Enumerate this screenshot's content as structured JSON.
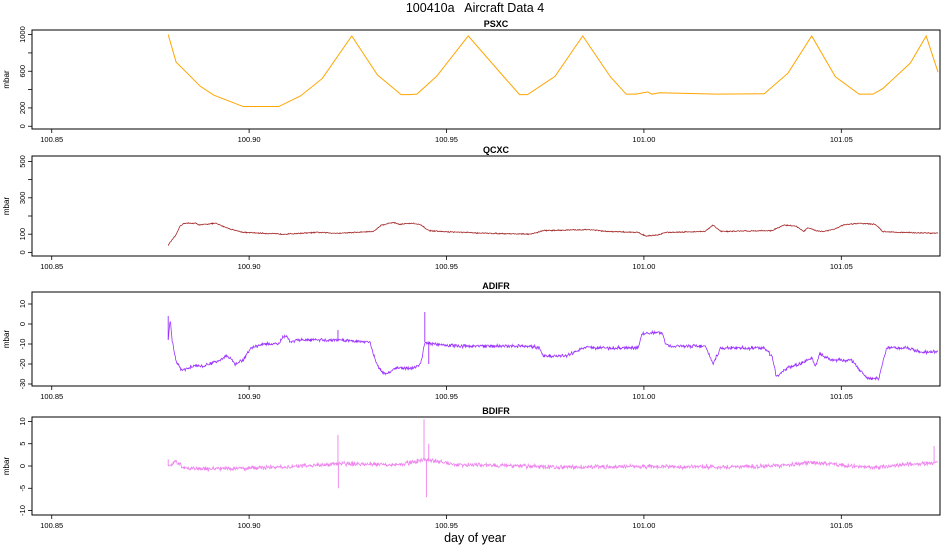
{
  "title": "100410a   Aircraft Data 4",
  "xlabel": "day of year",
  "chart_data": [
    {
      "type": "line",
      "title": "PSXC",
      "ylabel": "mbar",
      "color": "#FFA500",
      "xlim": [
        100.845,
        101.075
      ],
      "ylim": [
        -30,
        1050
      ],
      "xticks": [
        "100.85",
        "100.90",
        "100.95",
        "101.00",
        "101.05"
      ],
      "yticks": [
        "0",
        "200",
        "600",
        "1000"
      ],
      "yticks_minor": [
        400,
        800
      ],
      "noise": 0,
      "series": [
        {
          "x": [
            100.8795,
            100.8815,
            100.885,
            100.8875,
            100.891,
            100.8985,
            100.9075,
            100.913,
            100.9185,
            100.926,
            100.9325,
            100.9385,
            100.9405,
            100.9425,
            100.9475,
            100.9555,
            100.9645,
            100.9685,
            100.9705,
            100.9775,
            100.9845,
            100.9915,
            100.9955,
            100.998,
            101.001,
            101.002,
            101.004,
            101.0185,
            101.0305,
            101.0365,
            101.0425,
            101.0485,
            101.0545,
            101.058,
            101.0605,
            101.0675,
            101.0715,
            101.0745
          ],
          "y": [
            1000,
            700,
            550,
            440,
            340,
            215,
            215,
            330,
            520,
            985,
            560,
            345,
            345,
            350,
            545,
            985,
            540,
            345,
            345,
            545,
            985,
            540,
            350,
            350,
            375,
            350,
            365,
            350,
            355,
            580,
            985,
            540,
            350,
            350,
            410,
            690,
            985,
            590
          ]
        }
      ]
    },
    {
      "type": "line",
      "title": "QCXC",
      "ylabel": "mbar",
      "color": "#A52A2A",
      "xlim": [
        100.845,
        101.075
      ],
      "ylim": [
        -20,
        530
      ],
      "xticks": [
        "100.85",
        "100.90",
        "100.95",
        "101.00",
        "101.05"
      ],
      "yticks": [
        "0",
        "100",
        "300",
        "500"
      ],
      "yticks_minor": [
        200,
        400
      ],
      "noise": 2.5,
      "series": [
        {
          "x": [
            100.8795,
            100.8805,
            100.8815,
            100.8825,
            100.8835,
            100.8865,
            100.8875,
            100.889,
            100.8915,
            100.895,
            100.8985,
            100.9035,
            100.9085,
            100.9175,
            100.9225,
            100.9315,
            100.9335,
            100.9365,
            100.938,
            100.9415,
            100.9435,
            100.9455,
            100.948,
            100.96,
            100.9715,
            100.9745,
            100.9865,
            100.9905,
            100.9985,
            101.0005,
            101.0035,
            101.0055,
            101.0155,
            101.0175,
            101.0195,
            101.0325,
            101.0355,
            101.0385,
            101.0405,
            101.0415,
            101.0435,
            101.0455,
            101.0485,
            101.0505,
            101.0545,
            101.0585,
            101.0605,
            101.065,
            101.0745
          ],
          "y": [
            40,
            70,
            95,
            145,
            160,
            160,
            150,
            155,
            160,
            130,
            110,
            105,
            100,
            110,
            105,
            115,
            150,
            165,
            155,
            160,
            150,
            120,
            115,
            105,
            100,
            120,
            125,
            115,
            110,
            90,
            95,
            110,
            115,
            150,
            115,
            120,
            150,
            145,
            115,
            135,
            120,
            115,
            130,
            150,
            160,
            155,
            115,
            110,
            105
          ]
        }
      ]
    },
    {
      "type": "line",
      "title": "ADIFR",
      "ylabel": "mbar",
      "color": "#9B30FF",
      "xlim": [
        100.845,
        101.075
      ],
      "ylim": [
        -31,
        16
      ],
      "xticks": [
        "100.85",
        "100.90",
        "100.95",
        "101.00",
        "101.05"
      ],
      "yticks": [
        "-30",
        "-20",
        "-10",
        "0",
        "10"
      ],
      "yticks_minor": [],
      "noise": 0.7,
      "spikes": [
        {
          "x": 100.8795,
          "y": 4
        },
        {
          "x": 100.9225,
          "y": -3
        },
        {
          "x": 100.9445,
          "y": 6
        },
        {
          "x": 100.9455,
          "y": -20
        }
      ],
      "series": [
        {
          "x": [
            100.8795,
            100.88,
            100.8805,
            100.8815,
            100.8825,
            100.8835,
            100.8855,
            100.8885,
            100.8915,
            100.8945,
            100.8965,
            100.8985,
            100.9005,
            100.9035,
            100.9075,
            100.9085,
            100.9095,
            100.9105,
            100.9125,
            100.9175,
            100.9225,
            100.9305,
            100.9325,
            100.9345,
            100.9375,
            100.9415,
            100.9435,
            100.9445,
            100.9465,
            100.9525,
            100.9605,
            100.9705,
            100.9735,
            100.9745,
            100.9805,
            100.9845,
            100.9855,
            100.9875,
            100.9985,
            100.9995,
            101.0045,
            101.0055,
            101.0065,
            101.0155,
            101.0175,
            101.0195,
            101.0305,
            101.0325,
            101.0335,
            101.0345,
            101.0365,
            101.0395,
            101.0425,
            101.0435,
            101.0445,
            101.0475,
            101.0525,
            101.0565,
            101.0595,
            101.0615,
            101.0665,
            101.0705,
            101.0745
          ],
          "y": [
            -8,
            2,
            -8,
            -19,
            -22,
            -23,
            -21,
            -21,
            -19,
            -16,
            -20,
            -18,
            -12,
            -10,
            -10,
            -7,
            -6,
            -9,
            -8,
            -8,
            -8,
            -9,
            -21,
            -25,
            -22,
            -22,
            -20,
            -9,
            -10,
            -11,
            -11,
            -11,
            -12,
            -16,
            -16,
            -12,
            -11,
            -12,
            -12,
            -5,
            -4,
            -10,
            -11,
            -11,
            -20,
            -12,
            -12,
            -16,
            -26,
            -25,
            -22,
            -20,
            -17,
            -21,
            -15,
            -18,
            -18,
            -27,
            -27,
            -12,
            -12,
            -14,
            -14
          ]
        }
      ]
    },
    {
      "type": "line",
      "title": "BDIFR",
      "ylabel": "mbar",
      "color": "#EE82EE",
      "xlim": [
        100.845,
        101.075
      ],
      "ylim": [
        -11,
        11
      ],
      "xticks": [
        "100.85",
        "100.90",
        "100.95",
        "101.00",
        "101.05"
      ],
      "yticks": [
        "-10",
        "-5",
        "0",
        "5",
        "10"
      ],
      "yticks_minor": [],
      "noise": 0.4,
      "spikes": [
        {
          "x": 100.8795,
          "y": 1.5
        },
        {
          "x": 100.9225,
          "y": 7
        },
        {
          "x": 100.9226,
          "y": -5
        },
        {
          "x": 100.9443,
          "y": 10.5
        },
        {
          "x": 100.9449,
          "y": -7
        },
        {
          "x": 100.9455,
          "y": 5
        },
        {
          "x": 101.0735,
          "y": 4.5
        }
      ],
      "series": [
        {
          "x": [
            100.8795,
            100.8815,
            100.8835,
            100.8875,
            100.8975,
            100.9105,
            100.9225,
            100.9305,
            100.9385,
            100.9445,
            100.9525,
            100.9605,
            100.9785,
            100.9985,
            101.0185,
            101.0335,
            101.0425,
            101.0525,
            101.0585,
            101.0665,
            101.0745
          ],
          "y": [
            0,
            1,
            -0.5,
            -0.6,
            -0.5,
            -0.2,
            0.5,
            0.5,
            0.3,
            1.5,
            0.3,
            0.2,
            -0.3,
            -0.1,
            -0.2,
            0,
            0.8,
            0,
            -0.4,
            0.4,
            0.6
          ]
        }
      ]
    }
  ]
}
